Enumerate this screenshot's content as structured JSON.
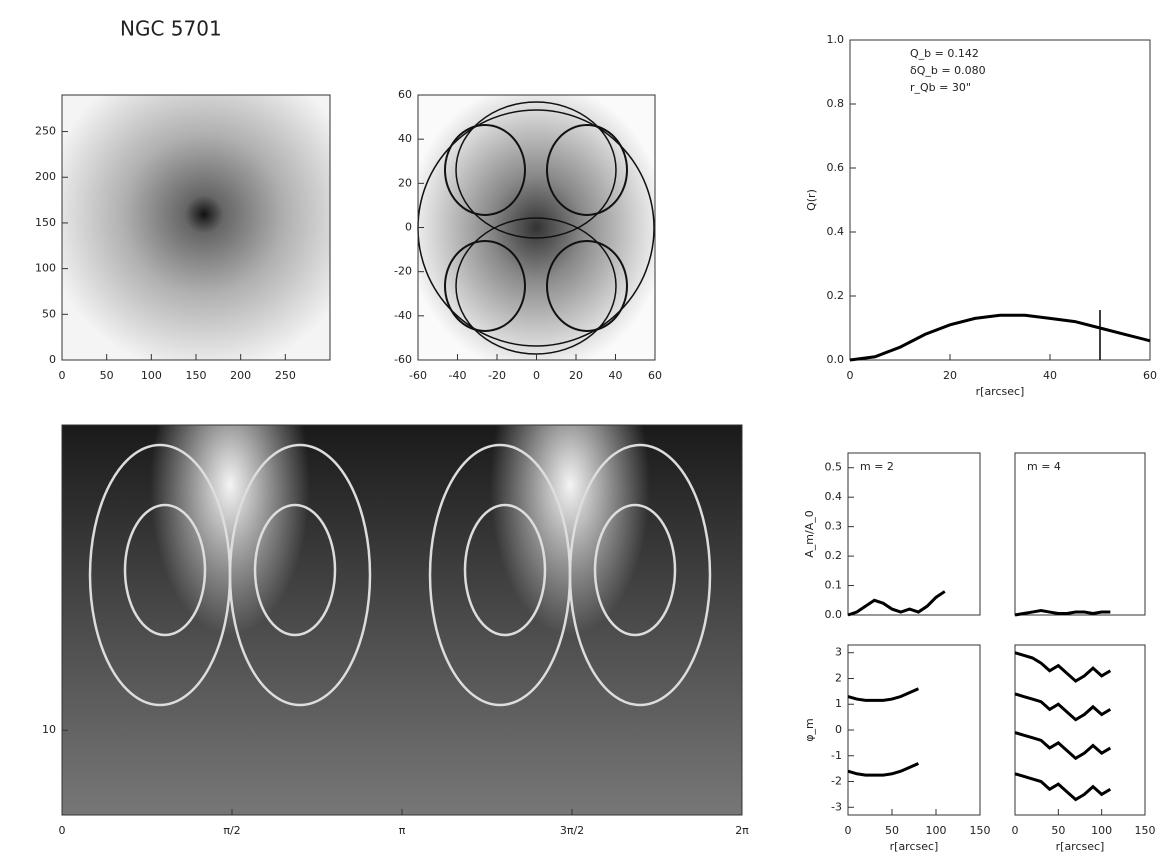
{
  "chart_data": [
    {
      "type": "image",
      "title": "NGC 5701",
      "xlim": [
        0,
        300
      ],
      "xticks": [
        0,
        50,
        100,
        150,
        200,
        250
      ],
      "ylim": [
        0,
        290
      ],
      "yticks": [
        0,
        50,
        100,
        150,
        200,
        250
      ]
    },
    {
      "type": "image",
      "xlim": [
        -60,
        60
      ],
      "xticks": [
        -60,
        -40,
        -20,
        0,
        20,
        40,
        60
      ],
      "ylim": [
        -60,
        60
      ],
      "yticks": [
        -60,
        -40,
        -20,
        0,
        20,
        40,
        60
      ]
    },
    {
      "type": "line",
      "xlabel": "r[arcsec]",
      "ylabel": "Q(r)",
      "annotations": [
        "Q_b = 0.142",
        "δQ_b = 0.080",
        "r_Qb = 30\""
      ],
      "xlim": [
        0,
        60
      ],
      "xticks": [
        0,
        20,
        40,
        60
      ],
      "ylim": [
        0,
        1
      ],
      "yticks": [
        {
          "value": 0,
          "label": "0.0"
        },
        {
          "value": 0.2,
          "label": "0.2"
        },
        {
          "value": 0.4,
          "label": "0.4"
        },
        {
          "value": 0.6,
          "label": "0.6"
        },
        {
          "value": 0.8,
          "label": "0.8"
        },
        {
          "value": 1,
          "label": "1.0"
        }
      ],
      "vline": 50,
      "x": [
        0,
        5,
        10,
        15,
        20,
        25,
        30,
        35,
        40,
        45,
        50,
        55,
        60
      ],
      "series": [
        {
          "color": "#000000",
          "values": [
            0,
            0.01,
            0.04,
            0.08,
            0.11,
            0.13,
            0.14,
            0.14,
            0.13,
            0.12,
            0.1,
            0.08,
            0.06
          ]
        }
      ]
    },
    {
      "type": "image",
      "xlim": [
        0,
        6.2832
      ],
      "xticks": [
        {
          "value": 0,
          "label": "0"
        },
        {
          "value": 1.5708,
          "label": "π/2"
        },
        {
          "value": 3.1416,
          "label": "π"
        },
        {
          "value": 4.7124,
          "label": "3π/2"
        },
        {
          "value": 6.2832,
          "label": "2π"
        }
      ],
      "ylim": [
        7.5,
        19
      ],
      "yticks": [
        10
      ]
    },
    {
      "type": "line",
      "ylabel": "A_m/A_0",
      "annotations": [
        "m = 2"
      ],
      "xlim": [
        0,
        150
      ],
      "ylim": [
        0,
        0.55
      ],
      "yticks": [
        {
          "value": 0,
          "label": "0.0"
        },
        {
          "value": 0.1,
          "label": "0.1"
        },
        {
          "value": 0.2,
          "label": "0.2"
        },
        {
          "value": 0.3,
          "label": "0.3"
        },
        {
          "value": 0.4,
          "label": "0.4"
        },
        {
          "value": 0.5,
          "label": "0.5"
        }
      ],
      "x": [
        0,
        10,
        20,
        30,
        40,
        50,
        60,
        70,
        80,
        90,
        100,
        110
      ],
      "series": [
        {
          "color": "#000000",
          "values": [
            0,
            0.01,
            0.03,
            0.05,
            0.04,
            0.02,
            0.01,
            0.02,
            0.01,
            0.03,
            0.06,
            0.08
          ]
        }
      ]
    },
    {
      "type": "line",
      "annotations": [
        "m = 4"
      ],
      "xlim": [
        0,
        150
      ],
      "ylim": [
        0,
        0.55
      ],
      "x": [
        0,
        10,
        20,
        30,
        40,
        50,
        60,
        70,
        80,
        90,
        100,
        110
      ],
      "series": [
        {
          "color": "#000000",
          "values": [
            0,
            0.005,
            0.01,
            0.015,
            0.01,
            0.005,
            0.005,
            0.01,
            0.01,
            0.005,
            0.01,
            0.01
          ]
        }
      ]
    },
    {
      "type": "line",
      "ylabel": "φ_m",
      "xlabel": "r[arcsec]",
      "xlim": [
        0,
        150
      ],
      "xticks": [
        0,
        50,
        100,
        150
      ],
      "ylim": [
        -3.3,
        3.3
      ],
      "yticks": [
        -3,
        -2,
        -1,
        0,
        1,
        2,
        3
      ],
      "x": [
        0,
        10,
        20,
        30,
        40,
        50,
        60,
        70,
        80
      ],
      "series": [
        {
          "color": "#000000",
          "values": [
            1.3,
            1.2,
            1.15,
            1.15,
            1.15,
            1.2,
            1.3,
            1.45,
            1.6
          ]
        },
        {
          "color": "#000000",
          "values": [
            -1.6,
            -1.7,
            -1.75,
            -1.75,
            -1.75,
            -1.7,
            -1.6,
            -1.45,
            -1.3
          ]
        }
      ]
    },
    {
      "type": "line",
      "xlabel": "r[arcsec]",
      "xlim": [
        0,
        150
      ],
      "xticks": [
        0,
        50,
        100,
        150
      ],
      "ylim": [
        -3.3,
        3.3
      ],
      "x": [
        0,
        10,
        20,
        30,
        40,
        50,
        60,
        70,
        80,
        90,
        100,
        110
      ],
      "series": [
        {
          "color": "#000000",
          "values": [
            3,
            2.9,
            2.8,
            2.6,
            2.3,
            2.5,
            2.2,
            1.9,
            2.1,
            2.4,
            2.1,
            2.3
          ]
        },
        {
          "color": "#000000",
          "values": [
            1.4,
            1.3,
            1.2,
            1.1,
            0.8,
            1,
            0.7,
            0.4,
            0.6,
            0.9,
            0.6,
            0.8
          ]
        },
        {
          "color": "#000000",
          "values": [
            -0.1,
            -0.2,
            -0.3,
            -0.4,
            -0.7,
            -0.5,
            -0.8,
            -1.1,
            -0.9,
            -0.6,
            -0.9,
            -0.7
          ]
        },
        {
          "color": "#000000",
          "values": [
            -1.7,
            -1.8,
            -1.9,
            -2,
            -2.3,
            -2.1,
            -2.4,
            -2.7,
            -2.5,
            -2.2,
            -2.5,
            -2.3
          ]
        }
      ]
    }
  ]
}
